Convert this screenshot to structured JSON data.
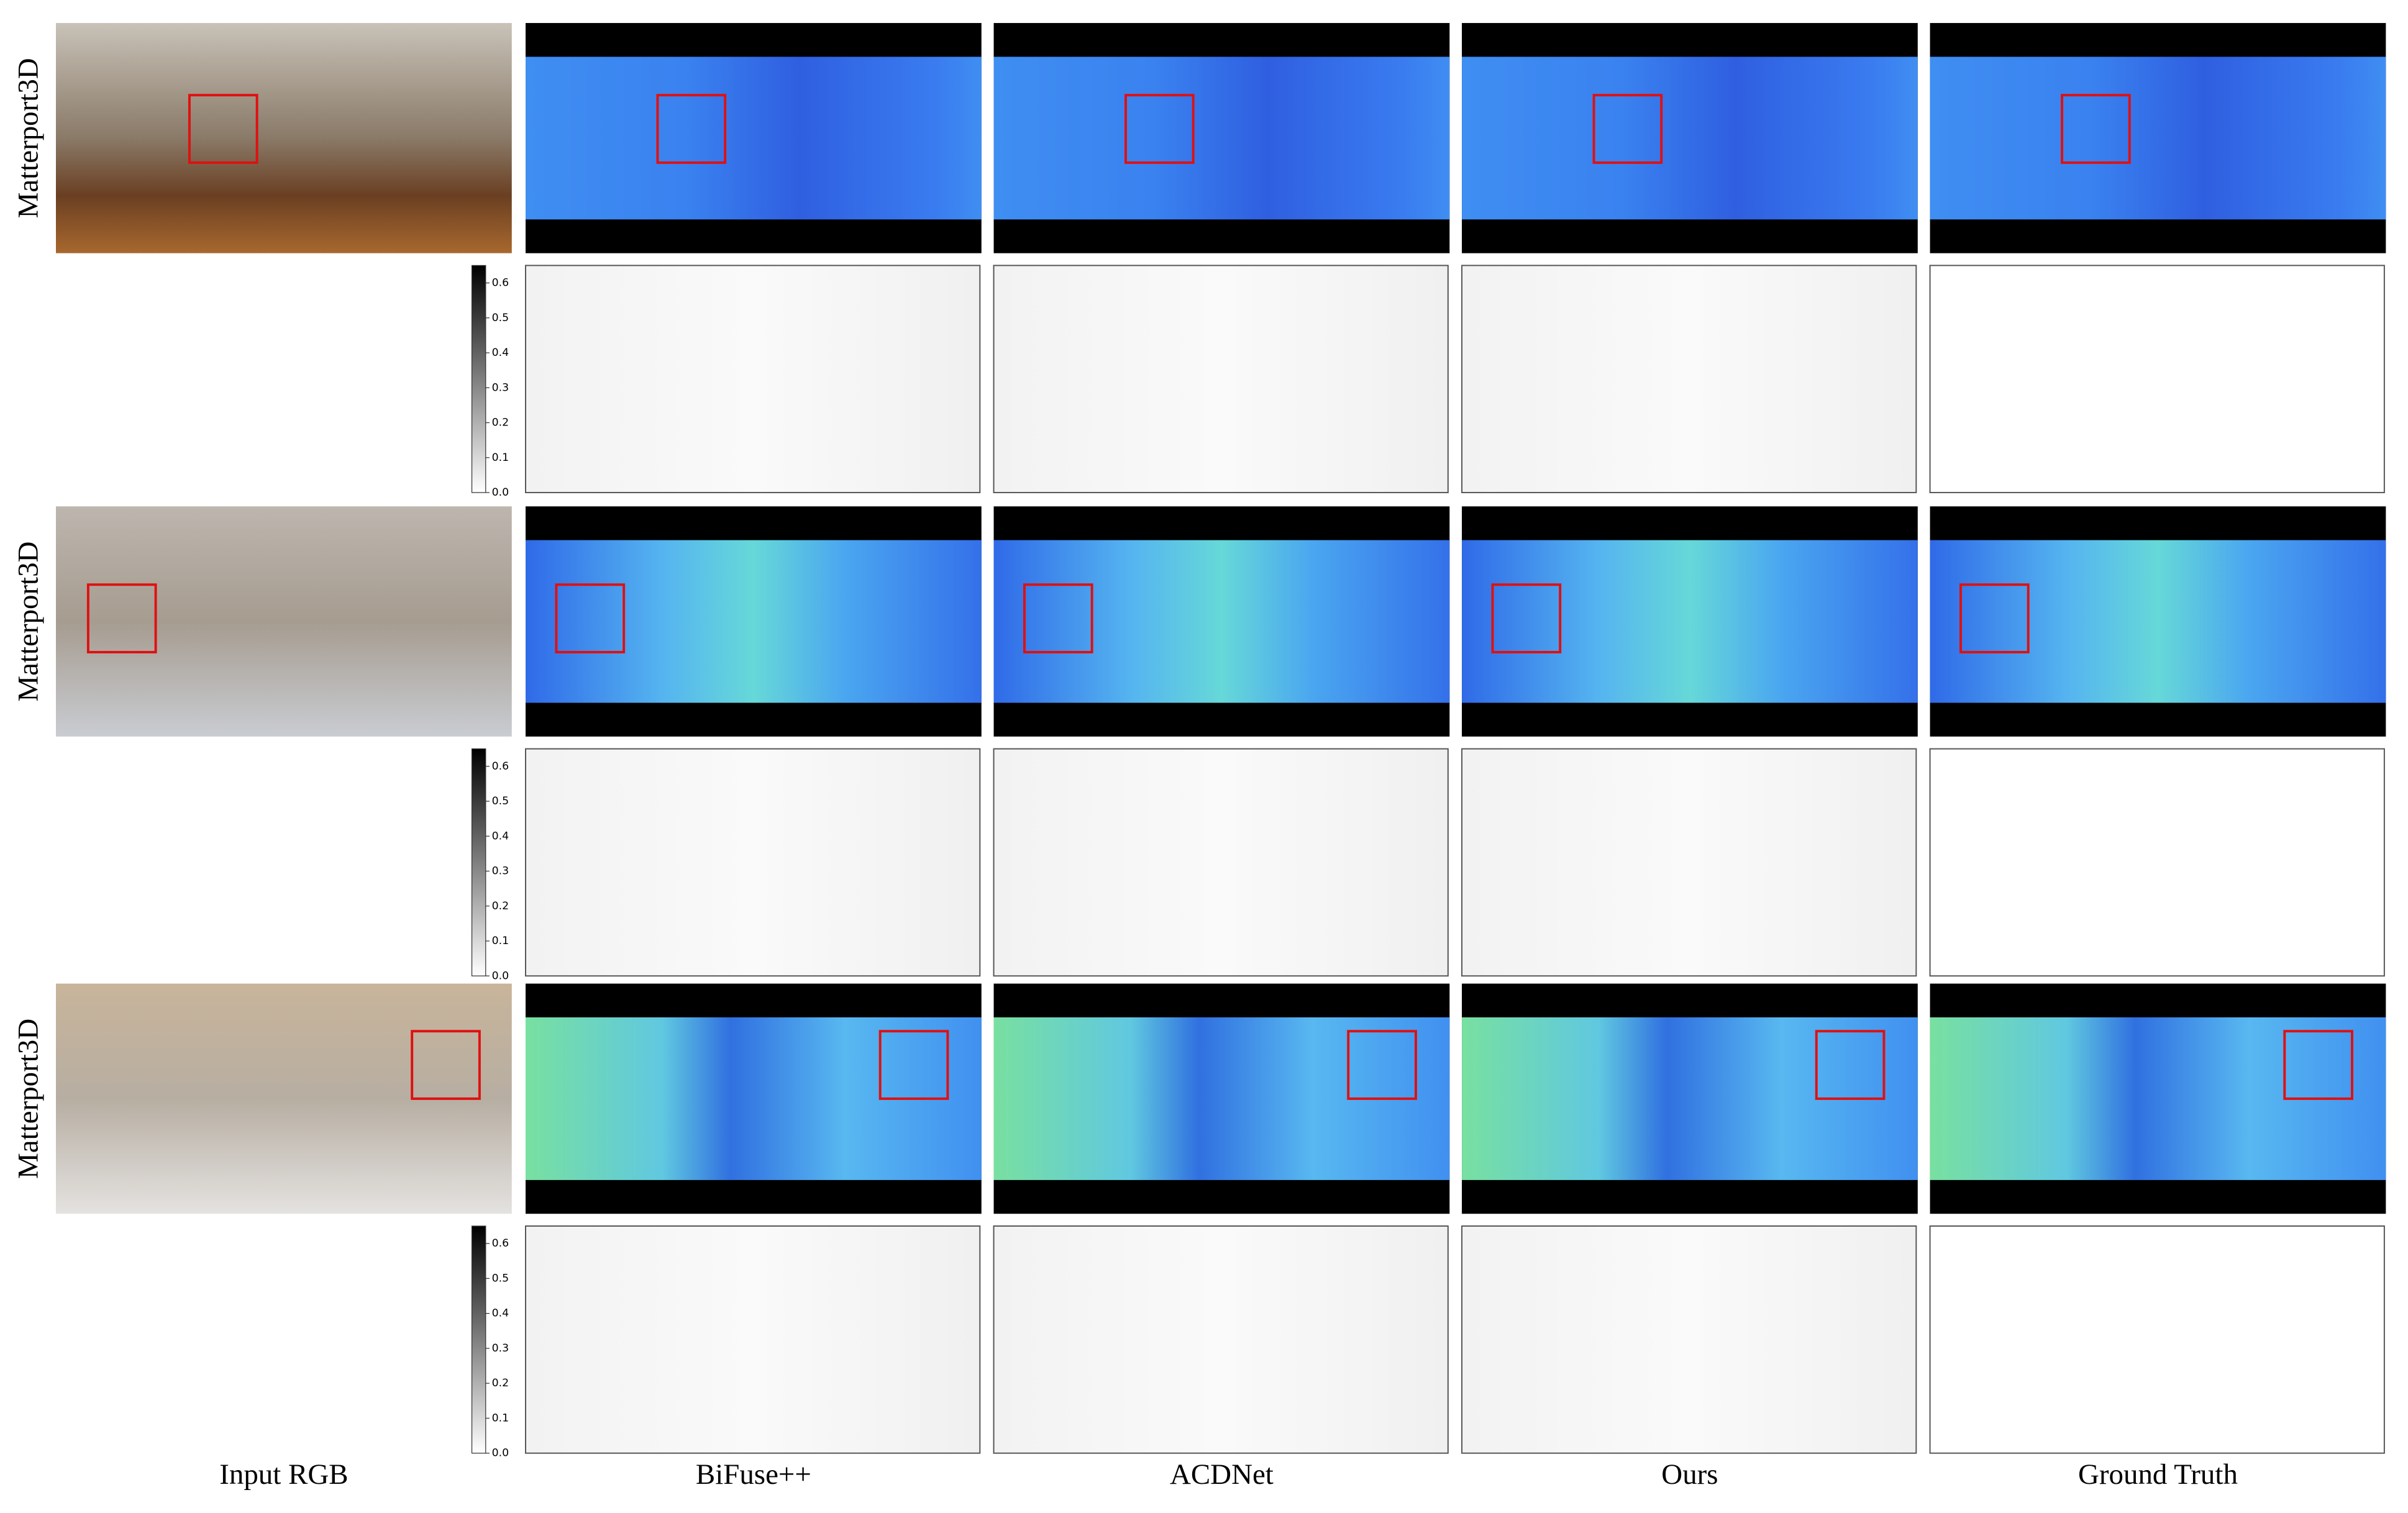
{
  "row_labels": [
    "Matterport3D",
    "Matterport3D",
    "Matterport3D"
  ],
  "column_labels": [
    "Input RGB",
    "BiFuse++",
    "ACDNet",
    "Ours",
    "Ground Truth"
  ],
  "error_colorbars": [
    {
      "ylim": [
        0,
        0.65
      ],
      "yticks": [
        {
          "value": 0,
          "label": "0.0"
        },
        0.1,
        0.2,
        0.3,
        0.4,
        0.5,
        0.6
      ]
    },
    {
      "ylim": [
        0,
        0.65
      ],
      "yticks": [
        {
          "value": 0,
          "label": "0.0"
        },
        0.1,
        0.2,
        0.3,
        0.4,
        0.5,
        0.6
      ]
    },
    {
      "ylim": [
        0,
        0.65
      ],
      "yticks": [
        {
          "value": 0,
          "label": "0.0"
        },
        0.1,
        0.2,
        0.3,
        0.4,
        0.5,
        0.6
      ]
    }
  ]
}
